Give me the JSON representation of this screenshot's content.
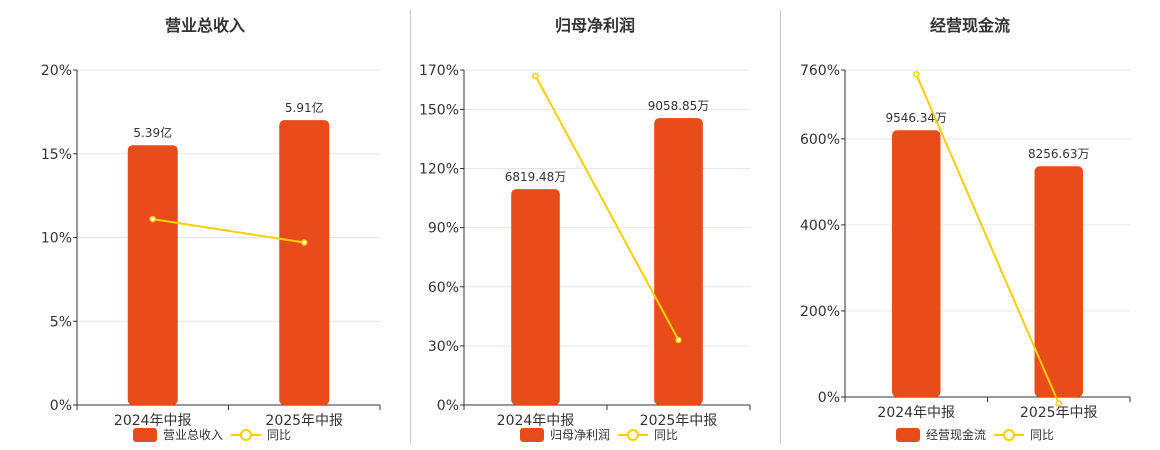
{
  "colors": {
    "bar": "#e84c1b",
    "line": "#f5d000",
    "grid": "#e4e6ef",
    "axis": "#333333"
  },
  "legend_line_label": "同比",
  "chart_data": [
    {
      "type": "bar",
      "title": "营业总收入",
      "categories": [
        "2024年中报",
        "2025年中报"
      ],
      "series": [
        {
          "name": "营业总收入",
          "type": "bar",
          "values": [
            5.39,
            5.91
          ],
          "value_labels": [
            "5.39亿",
            "5.91亿"
          ]
        },
        {
          "name": "同比",
          "type": "line",
          "values": [
            11.1,
            9.7
          ]
        }
      ],
      "ylim": [
        0,
        20
      ],
      "yticks": [
        0,
        5,
        10,
        15,
        20
      ],
      "ytick_labels": [
        "0%",
        "5%",
        "10%",
        "15%",
        "20%"
      ],
      "grid": true,
      "legend": "bottom",
      "bar_scale_max": 6.95
    },
    {
      "type": "bar",
      "title": "归母净利润",
      "categories": [
        "2024年中报",
        "2025年中报"
      ],
      "series": [
        {
          "name": "归母净利润",
          "type": "bar",
          "values": [
            6819.48,
            9058.85
          ],
          "value_labels": [
            "6819.48万",
            "9058.85万"
          ]
        },
        {
          "name": "同比",
          "type": "line",
          "values": [
            167,
            33
          ]
        }
      ],
      "ylim": [
        0,
        170
      ],
      "yticks": [
        0,
        30,
        60,
        90,
        120,
        150,
        170
      ],
      "ytick_labels": [
        "0%",
        "30%",
        "60%",
        "90%",
        "120%",
        "150%",
        "170%"
      ],
      "grid": true,
      "legend": "bottom",
      "bar_scale_max": 10580
    },
    {
      "type": "bar",
      "title": "经营现金流",
      "categories": [
        "2024年中报",
        "2025年中报"
      ],
      "series": [
        {
          "name": "经营现金流",
          "type": "bar",
          "values": [
            9546.34,
            8256.63
          ],
          "value_labels": [
            "9546.34万",
            "8256.63万"
          ]
        },
        {
          "name": "同比",
          "type": "line",
          "values": [
            750,
            -15
          ]
        }
      ],
      "ylim": [
        0,
        760
      ],
      "yticks": [
        0,
        200,
        400,
        600,
        760
      ],
      "ytick_labels": [
        "0%",
        "200%",
        "400%",
        "600%",
        "760%"
      ],
      "grid": true,
      "legend": "bottom",
      "bar_scale_max": 11700
    }
  ]
}
